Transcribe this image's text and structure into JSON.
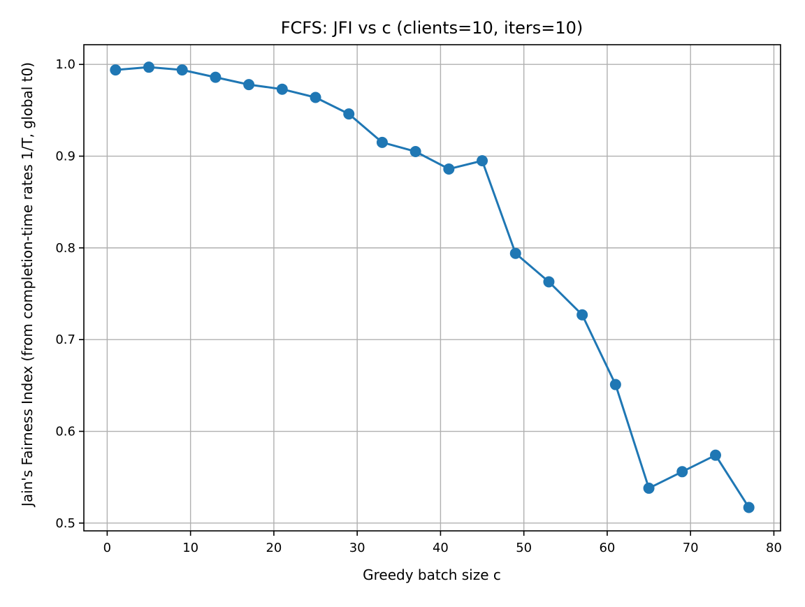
{
  "chart_data": {
    "type": "line",
    "title": "FCFS: JFI vs c (clients=10, iters=10)",
    "xlabel": "Greedy batch size c",
    "ylabel": "Jain's Fairness Index (from completion-time rates 1/T, global t0)",
    "xlim": [
      -2.8,
      80.8
    ],
    "ylim": [
      0.4915,
      1.0215
    ],
    "xticks": [
      0,
      10,
      20,
      30,
      40,
      50,
      60,
      70,
      80
    ],
    "xtick_labels": [
      "0",
      "10",
      "20",
      "30",
      "40",
      "50",
      "60",
      "70",
      "80"
    ],
    "yticks": [
      0.5,
      0.6,
      0.7,
      0.8,
      0.9,
      1.0
    ],
    "ytick_labels": [
      "0.5",
      "0.6",
      "0.7",
      "0.8",
      "0.9",
      "1.0"
    ],
    "grid": true,
    "legend": "none",
    "series": [
      {
        "color": "#1f77b4",
        "marker": "circle",
        "x": [
          1,
          5,
          9,
          13,
          17,
          21,
          25,
          29,
          33,
          37,
          41,
          45,
          49,
          53,
          57,
          61,
          65,
          69,
          73,
          77
        ],
        "y": [
          0.994,
          0.997,
          0.994,
          0.986,
          0.978,
          0.973,
          0.964,
          0.946,
          0.915,
          0.905,
          0.886,
          0.895,
          0.794,
          0.763,
          0.727,
          0.651,
          0.538,
          0.556,
          0.574,
          0.517
        ]
      }
    ]
  }
}
